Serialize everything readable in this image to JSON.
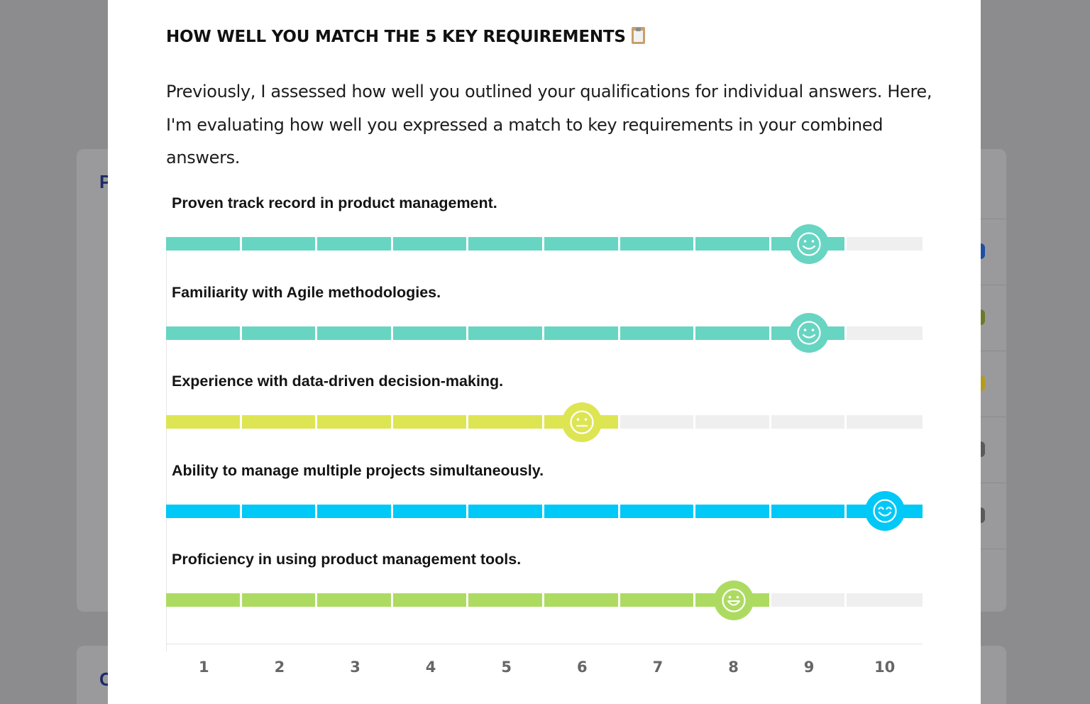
{
  "background": {
    "card_letter_top": "P",
    "card_letter_bottom": "C"
  },
  "modal": {
    "title": "HOW WELL YOU MATCH THE 5 KEY REQUIREMENTS",
    "title_icon": "clipboard-icon",
    "intro": "Previously, I assessed how well you outlined your qualifications for individual answers. Here, I'm evaluating how well you expressed a match to key requirements in your combined answers."
  },
  "chart_data": {
    "type": "bar",
    "scale": [
      1,
      2,
      3,
      4,
      5,
      6,
      7,
      8,
      9,
      10
    ],
    "axis_ticks": [
      "1",
      "2",
      "3",
      "4",
      "5",
      "6",
      "7",
      "8",
      "9",
      "10"
    ],
    "empty_color": "#efefef",
    "requirements": [
      {
        "label": "Proven track record in product management.",
        "score": 9,
        "color": "#67d5c2",
        "face": "smile"
      },
      {
        "label": "Familiarity with Agile methodologies.",
        "score": 9,
        "color": "#67d5c2",
        "face": "smile"
      },
      {
        "label": "Experience with data-driven decision-making.",
        "score": 6,
        "color": "#dde553",
        "face": "neutral"
      },
      {
        "label": "Ability to manage multiple projects simultaneously.",
        "score": 10,
        "color": "#00c8f7",
        "face": "joy"
      },
      {
        "label": "Proficiency in using product management tools.",
        "score": 8,
        "color": "#addb62",
        "face": "grin"
      }
    ]
  }
}
